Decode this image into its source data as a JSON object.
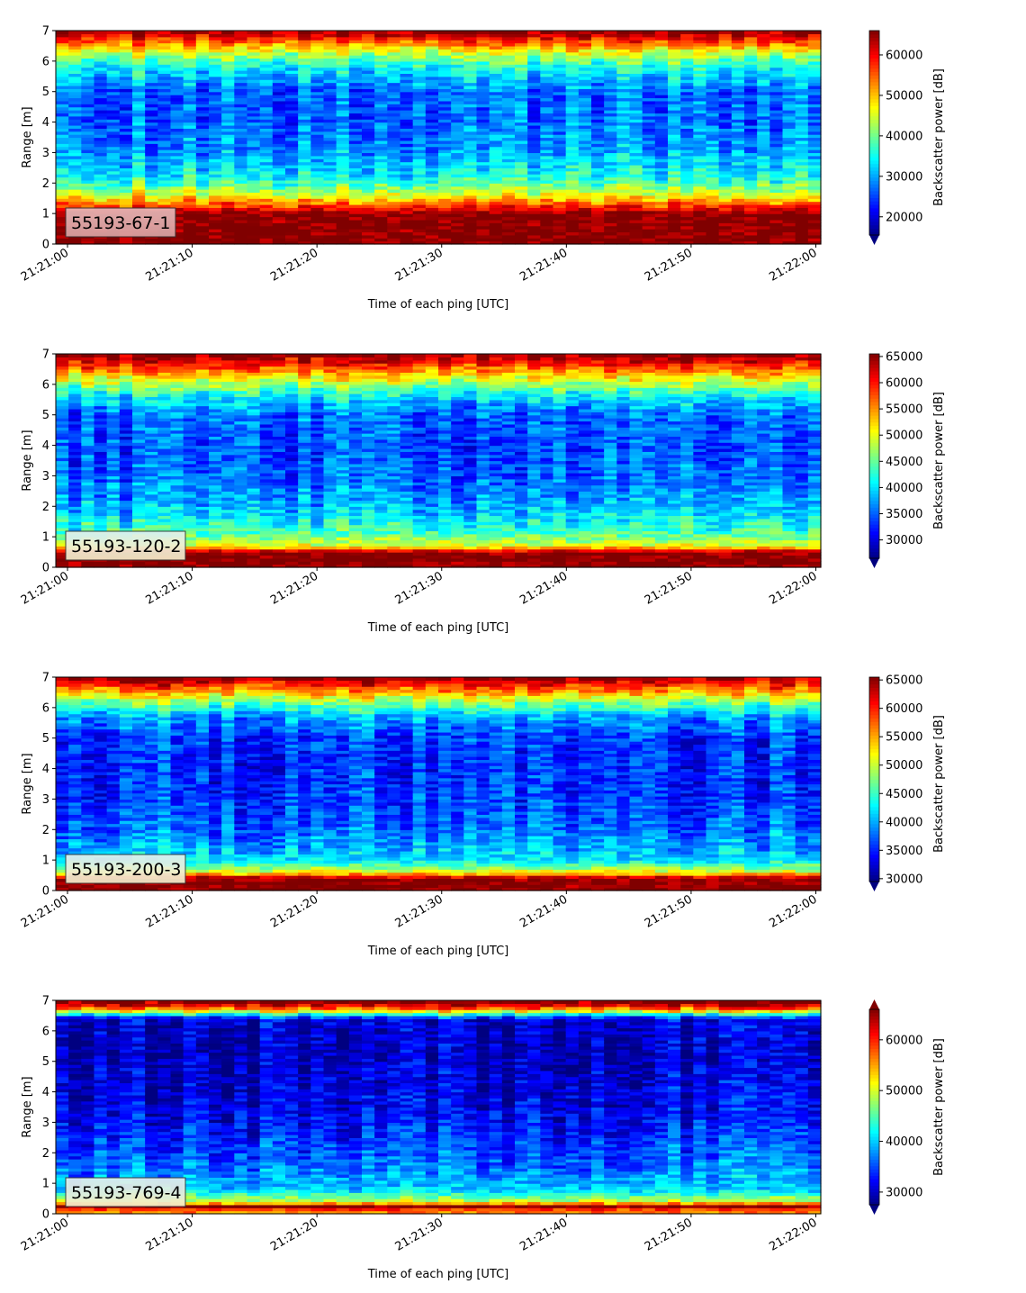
{
  "chart_data": [
    {
      "type": "heatmap",
      "label": "55193-67-1",
      "xlabel": "Time of each ping [UTC]",
      "ylabel": "Range [m]",
      "colorbar_label": "Backscatter power [dB]",
      "colormap": "jet",
      "xticks": [
        "21:21:00",
        "21:21:10",
        "21:21:20",
        "21:21:30",
        "21:21:40",
        "21:21:50",
        "21:22:00"
      ],
      "yticks": [
        0,
        1,
        2,
        3,
        4,
        5,
        6,
        7
      ],
      "ylim": [
        0,
        7
      ],
      "clim": [
        15500,
        66000
      ],
      "cticks": [
        20000,
        30000,
        40000,
        50000,
        60000
      ],
      "extend": "min",
      "profile": [
        {
          "range": 0.2,
          "value": 66000
        },
        {
          "range": 1.0,
          "value": 66000
        },
        {
          "range": 1.3,
          "value": 56000
        },
        {
          "range": 1.7,
          "value": 44000
        },
        {
          "range": 2.2,
          "value": 35000
        },
        {
          "range": 3.0,
          "value": 30000
        },
        {
          "range": 4.0,
          "value": 27000
        },
        {
          "range": 5.0,
          "value": 27000
        },
        {
          "range": 5.8,
          "value": 35000
        },
        {
          "range": 6.3,
          "value": 45000
        },
        {
          "range": 6.7,
          "value": 58000
        },
        {
          "range": 7.0,
          "value": 66000
        }
      ]
    },
    {
      "type": "heatmap",
      "label": "55193-120-2",
      "xlabel": "Time of each ping [UTC]",
      "ylabel": "Range [m]",
      "colorbar_label": "Backscatter power [dB]",
      "colormap": "jet",
      "xticks": [
        "21:21:00",
        "21:21:10",
        "21:21:20",
        "21:21:30",
        "21:21:40",
        "21:21:50",
        "21:22:00"
      ],
      "yticks": [
        0,
        1,
        2,
        3,
        4,
        5,
        6,
        7
      ],
      "ylim": [
        0,
        7
      ],
      "clim": [
        26500,
        65500
      ],
      "cticks": [
        30000,
        35000,
        40000,
        45000,
        50000,
        55000,
        60000,
        65000
      ],
      "extend": "min",
      "profile": [
        {
          "range": 0.1,
          "value": 65500
        },
        {
          "range": 0.5,
          "value": 65500
        },
        {
          "range": 0.7,
          "value": 50000
        },
        {
          "range": 1.2,
          "value": 43000
        },
        {
          "range": 2.0,
          "value": 38000
        },
        {
          "range": 3.0,
          "value": 35000
        },
        {
          "range": 4.0,
          "value": 34000
        },
        {
          "range": 5.0,
          "value": 35000
        },
        {
          "range": 5.6,
          "value": 40000
        },
        {
          "range": 6.2,
          "value": 50000
        },
        {
          "range": 6.6,
          "value": 58000
        },
        {
          "range": 7.0,
          "value": 65500
        }
      ]
    },
    {
      "type": "heatmap",
      "label": "55193-200-3",
      "xlabel": "Time of each ping [UTC]",
      "ylabel": "Range [m]",
      "colorbar_label": "Backscatter power [dB]",
      "colormap": "jet",
      "xticks": [
        "21:21:00",
        "21:21:10",
        "21:21:20",
        "21:21:30",
        "21:21:40",
        "21:21:50",
        "21:22:00"
      ],
      "yticks": [
        0,
        1,
        2,
        3,
        4,
        5,
        6,
        7
      ],
      "ylim": [
        0,
        7
      ],
      "clim": [
        29500,
        65500
      ],
      "cticks": [
        30000,
        35000,
        40000,
        45000,
        50000,
        55000,
        60000,
        65000
      ],
      "extend": "min",
      "profile": [
        {
          "range": 0.1,
          "value": 65500
        },
        {
          "range": 0.4,
          "value": 65500
        },
        {
          "range": 0.6,
          "value": 52000
        },
        {
          "range": 1.0,
          "value": 42000
        },
        {
          "range": 2.0,
          "value": 38000
        },
        {
          "range": 3.0,
          "value": 36000
        },
        {
          "range": 4.0,
          "value": 35500
        },
        {
          "range": 5.0,
          "value": 36000
        },
        {
          "range": 5.7,
          "value": 40000
        },
        {
          "range": 6.2,
          "value": 48000
        },
        {
          "range": 6.6,
          "value": 57000
        },
        {
          "range": 7.0,
          "value": 65500
        }
      ]
    },
    {
      "type": "heatmap",
      "label": "55193-769-4",
      "xlabel": "Time of each ping [UTC]",
      "ylabel": "Range [m]",
      "colorbar_label": "Backscatter power [dB]",
      "colormap": "jet",
      "xticks": [
        "21:21:00",
        "21:21:10",
        "21:21:20",
        "21:21:30",
        "21:21:40",
        "21:21:50",
        "21:22:00"
      ],
      "yticks": [
        0,
        1,
        2,
        3,
        4,
        5,
        6,
        7
      ],
      "ylim": [
        0,
        7
      ],
      "clim": [
        27500,
        66000
      ],
      "cticks": [
        30000,
        40000,
        50000,
        60000
      ],
      "extend": "both",
      "profile": [
        {
          "range": 0.1,
          "value": 56000
        },
        {
          "range": 0.25,
          "value": 66000
        },
        {
          "range": 0.4,
          "value": 50000
        },
        {
          "range": 0.8,
          "value": 40000
        },
        {
          "range": 1.5,
          "value": 37000
        },
        {
          "range": 2.5,
          "value": 34000
        },
        {
          "range": 3.5,
          "value": 32000
        },
        {
          "range": 4.5,
          "value": 31000
        },
        {
          "range": 5.5,
          "value": 30000
        },
        {
          "range": 6.4,
          "value": 31000
        },
        {
          "range": 6.7,
          "value": 55000
        },
        {
          "range": 6.9,
          "value": 66000
        }
      ]
    }
  ]
}
